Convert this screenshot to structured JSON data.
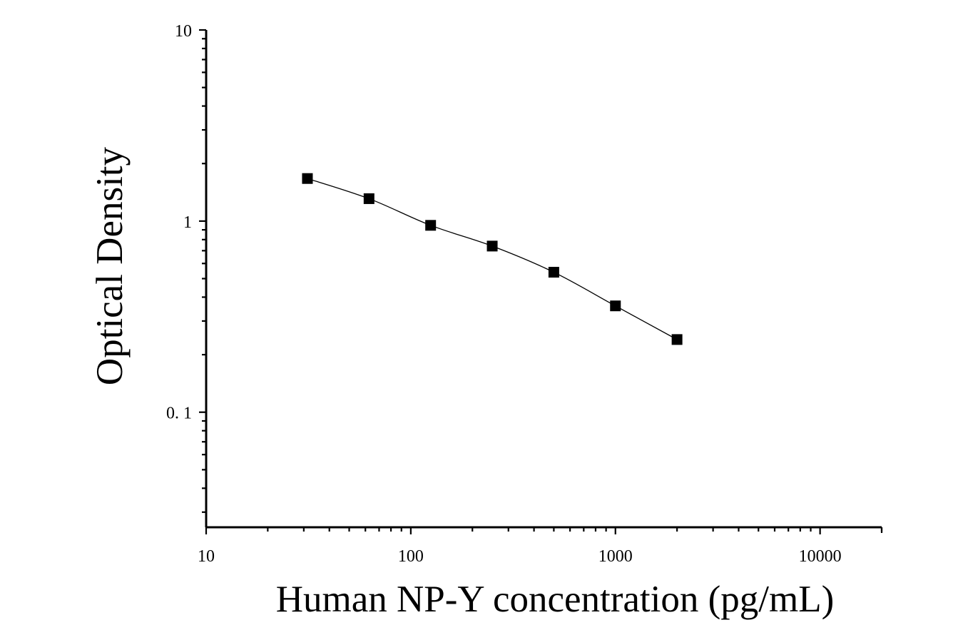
{
  "chart_data": {
    "type": "scatter",
    "xlabel": "Human NP-Y concentration (pg/mL)",
    "ylabel": "Optical Density",
    "x_scale": "log",
    "y_scale": "log",
    "xlim": [
      10,
      20000
    ],
    "ylim": [
      0.025,
      10
    ],
    "x_ticks": [
      {
        "value": 10,
        "label": "10"
      },
      {
        "value": 100,
        "label": "100"
      },
      {
        "value": 1000,
        "label": "1000"
      },
      {
        "value": 10000,
        "label": "10000"
      }
    ],
    "y_ticks": [
      {
        "value": 10,
        "label": "10"
      },
      {
        "value": 1,
        "label": "1"
      },
      {
        "value": 0.1,
        "label": "0. 1"
      }
    ],
    "grid": false,
    "legend": "none",
    "marker": "square",
    "fit_line": true,
    "color": "#000000",
    "series": [
      {
        "x": [
          31.25,
          62.5,
          125,
          250,
          500,
          1000,
          2000
        ],
        "y": [
          1.67,
          1.31,
          0.95,
          0.74,
          0.54,
          0.36,
          0.24
        ]
      }
    ]
  }
}
